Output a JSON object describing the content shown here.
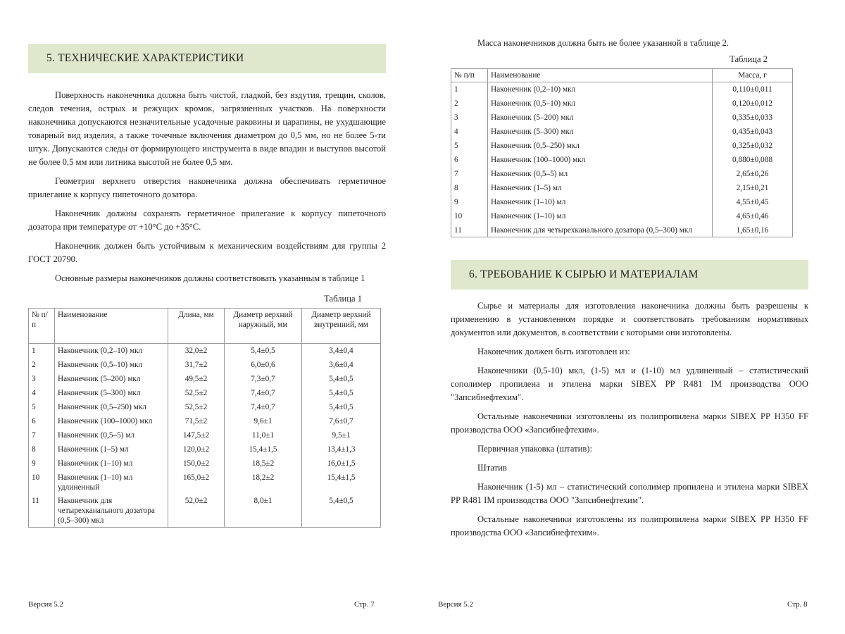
{
  "left": {
    "section_title": "5.  ТЕХНИЧЕСКИЕ ХАРАКТЕРИСТИКИ",
    "paragraphs": [
      "Поверхность наконечника должна быть чистой, гладкой, без вздутия, трещин, сколов, следов течения, острых и режущих кромок, загрязненных участков. На поверхности наконечника допускаются незначительные усадочные раковины и царапины, не ухудшающие товарный вид изделия, а также точечные включения диаметром до 0,5 мм, но не более 5-ти штук. Допускаются следы от формирующего инструмента в виде впадин и выступов высотой не более 0,5 мм или литника высотой не более 0,5 мм.",
      "Геометрия верхнего отверстия наконечника должна обеспечивать герметичное прилегание к корпусу пипеточного дозатора.",
      "Наконечник должны сохранять герметичное прилегание к корпусу пипеточного дозатора при температуре от +10°С до +35°С.",
      "Наконечник должен быть устойчивым к механическим воздействиям для группы 2 ГОСТ 20790.",
      "Основные размеры наконечников должны соответствовать указанным в таблице 1"
    ],
    "table_caption": "Таблица 1",
    "table": {
      "headers": [
        "№ п/п",
        "Наименование",
        "Длина, мм",
        "Диаметр верхний наружный, мм",
        "Диаметр верхний внутренний, мм"
      ],
      "rows": [
        [
          "1",
          "Наконечник (0,2–10) мкл",
          "32,0±2",
          "5,4±0,5",
          "3,4±0,4"
        ],
        [
          "2",
          "Наконечник (0,5–10) мкл",
          "31,7±2",
          "6,0±0,6",
          "3,6±0,4"
        ],
        [
          "3",
          "Наконечник (5–200) мкл",
          "49,5±2",
          "7,3±0,7",
          "5,4±0,5"
        ],
        [
          "4",
          "Наконечник (5–300) мкл",
          "52,5±2",
          "7,4±0,7",
          "5,4±0,5"
        ],
        [
          "5",
          "Наконечник (0,5–250) мкл",
          "52,5±2",
          "7,4±0,7",
          "5,4±0,5"
        ],
        [
          "6",
          "Наконечник (100–1000) мкл",
          "71,5±2",
          "9,6±1",
          "7,6±0,7"
        ],
        [
          "7",
          "Наконечник (0,5–5) мл",
          "147,5±2",
          "11,0±1",
          "9,5±1"
        ],
        [
          "8",
          "Наконечник (1–5) мл",
          "120,0±2",
          "15,4±1,5",
          "13,4±1,3"
        ],
        [
          "9",
          "Наконечник (1–10) мл",
          "150,0±2",
          "18,5±2",
          "16,0±1,5"
        ],
        [
          "10",
          "Наконечник (1–10) мл удлиненный",
          "165,0±2",
          "18,2±2",
          "15,4±1,5"
        ],
        [
          "11",
          "Наконечник для четырехканального дозатора (0,5–300) мкл",
          "52,0±2",
          "8,0±1",
          "5,4±0,5"
        ]
      ]
    },
    "footer_version": "Версия 5.2",
    "footer_page": "Стр. 7"
  },
  "right": {
    "intro": "Масса наконечников должна быть не более указанной в таблице 2.",
    "table_caption": "Таблица 2",
    "table": {
      "headers": [
        "№ п/п",
        "Наименование",
        "Масса, г"
      ],
      "rows": [
        [
          "1",
          "Наконечник (0,2–10) мкл",
          "0,110±0,011"
        ],
        [
          "2",
          "Наконечник (0,5–10) мкл",
          "0,120±0,012"
        ],
        [
          "3",
          "Наконечник (5–200) мкл",
          "0,335±0,033"
        ],
        [
          "4",
          "Наконечник (5–300) мкл",
          "0,435±0,043"
        ],
        [
          "5",
          "Наконечник (0,5–250) мкл",
          "0,325±0,032"
        ],
        [
          "6",
          "Наконечник (100–1000) мкл",
          "0,880±0,088"
        ],
        [
          "7",
          "Наконечник (0,5–5) мл",
          "2,65±0,26"
        ],
        [
          "8",
          "Наконечник (1–5) мл",
          "2,15±0,21"
        ],
        [
          "9",
          "Наконечник (1–10) мл",
          "4,55±0,45"
        ],
        [
          "10",
          "Наконечник (1–10) мл",
          "4,65±0,46"
        ],
        [
          "11",
          "Наконечник для четырехканального дозатора (0,5–300) мкл",
          "1,65±0,16"
        ]
      ]
    },
    "section_title": "6.  ТРЕБОВАНИЕ К СЫРЬЮ И МАТЕРИАЛАМ",
    "paragraphs": [
      "Сырье и материалы для изготовления наконечника должны быть разрешены к применению в установленном порядке и соответствовать требованиям нормативных документов или документов, в соответствии с которыми они изготовлены.",
      "Наконечник должен быть изготовлен из:",
      "Наконечники (0,5-10) мкл, (1-5) мл и (1-10) мл удлиненный – статистический сополимер пропилена и этилена марки SIBEX PP R481 IM производства ООО \"Запсибнефтехим\".",
      "Остальные наконечники изготовлены из полипропилена марки SIBEX PP H350 FF производства ООО «Запсибнефтехим».",
      "Первичная упаковка (штатив):",
      "Штатив",
      "Наконечник (1-5) мл – статистический сополимер пропилена и этилена марки SIBEX PP R481 IM производства ООО \"Запсибнефтехим\".",
      "Остальные наконечники изготовлены из полипропилена марки SIBEX PP H350 FF производства ООО «Запсибнефтехим»."
    ],
    "footer_version": "Версия 5.2",
    "footer_page": "Стр. 8"
  },
  "colors": {
    "section_band": "#dfe8cc"
  }
}
